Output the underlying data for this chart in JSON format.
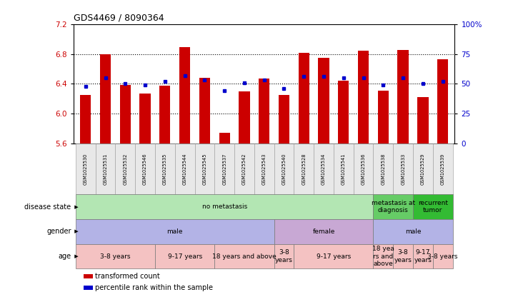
{
  "title": "GDS4469 / 8090364",
  "samples": [
    "GSM1025530",
    "GSM1025531",
    "GSM1025532",
    "GSM1025546",
    "GSM1025535",
    "GSM1025544",
    "GSM1025545",
    "GSM1025537",
    "GSM1025542",
    "GSM1025543",
    "GSM1025540",
    "GSM1025528",
    "GSM1025534",
    "GSM1025541",
    "GSM1025536",
    "GSM1025538",
    "GSM1025533",
    "GSM1025529",
    "GSM1025539"
  ],
  "transformed_counts": [
    6.25,
    6.8,
    6.38,
    6.27,
    6.37,
    6.89,
    6.48,
    5.74,
    6.3,
    6.47,
    6.25,
    6.81,
    6.75,
    6.44,
    6.84,
    6.31,
    6.85,
    6.22,
    6.73
  ],
  "percentile_ranks": [
    48,
    55,
    50,
    49,
    52,
    57,
    53,
    44,
    51,
    53,
    46,
    56,
    56,
    55,
    55,
    49,
    55,
    50,
    52
  ],
  "ylim_left": [
    5.6,
    7.2
  ],
  "ylim_right": [
    0,
    100
  ],
  "yticks_left": [
    5.6,
    6.0,
    6.4,
    6.8,
    7.2
  ],
  "yticks_right": [
    0,
    25,
    50,
    75,
    100
  ],
  "bar_color": "#cc0000",
  "dot_color": "#0000cc",
  "baseline": 5.6,
  "disease_state_groups": [
    {
      "label": "no metastasis",
      "start": 0,
      "end": 15,
      "color": "#b3e6b3"
    },
    {
      "label": "metastasis at\ndiagnosis",
      "start": 15,
      "end": 17,
      "color": "#66cc66"
    },
    {
      "label": "recurrent\ntumor",
      "start": 17,
      "end": 19,
      "color": "#33bb33"
    }
  ],
  "gender_groups": [
    {
      "label": "male",
      "start": 0,
      "end": 10,
      "color": "#b3b3e6"
    },
    {
      "label": "female",
      "start": 10,
      "end": 15,
      "color": "#c8a8d4"
    },
    {
      "label": "male",
      "start": 15,
      "end": 19,
      "color": "#b3b3e6"
    }
  ],
  "age_groups": [
    {
      "label": "3-8 years",
      "start": 0,
      "end": 4,
      "color": "#f4c2c2"
    },
    {
      "label": "9-17 years",
      "start": 4,
      "end": 7,
      "color": "#f4c2c2"
    },
    {
      "label": "18 years and above",
      "start": 7,
      "end": 10,
      "color": "#f4c2c2"
    },
    {
      "label": "3-8\nyears",
      "start": 10,
      "end": 11,
      "color": "#f4c2c2"
    },
    {
      "label": "9-17 years",
      "start": 11,
      "end": 15,
      "color": "#f4c2c2"
    },
    {
      "label": "18 yea\nrs and\nabove",
      "start": 15,
      "end": 16,
      "color": "#f4c2c2"
    },
    {
      "label": "3-8\nyears",
      "start": 16,
      "end": 17,
      "color": "#f4c2c2"
    },
    {
      "label": "9-17\nyears",
      "start": 17,
      "end": 18,
      "color": "#f4c2c2"
    },
    {
      "label": "3-8 years",
      "start": 18,
      "end": 19,
      "color": "#f4c2c2"
    }
  ],
  "legend_items": [
    {
      "label": "transformed count",
      "color": "#cc0000"
    },
    {
      "label": "percentile rank within the sample",
      "color": "#0000cc"
    }
  ],
  "row_labels": [
    "disease state",
    "gender",
    "age"
  ],
  "sample_label_bg": "#e0e0e0",
  "sample_cell_bg": "#f0f0f0"
}
